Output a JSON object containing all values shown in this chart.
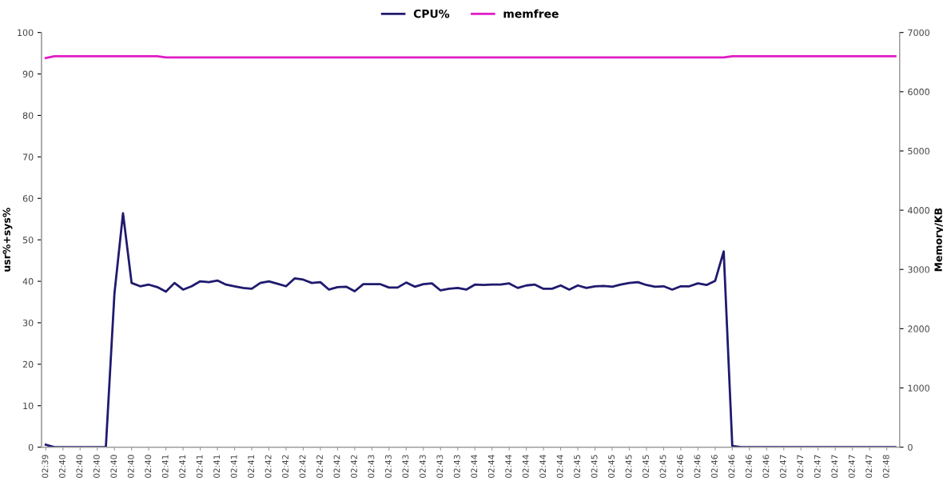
{
  "chart_data": {
    "type": "line",
    "categories": [
      "02:39",
      null,
      "02:40",
      null,
      "02:40",
      null,
      "02:40",
      null,
      "02:40",
      null,
      "02:40",
      null,
      "02:40",
      null,
      "02:41",
      null,
      "02:41",
      null,
      "02:41",
      null,
      "02:41",
      null,
      "02:41",
      null,
      "02:41",
      null,
      "02:42",
      null,
      "02:42",
      null,
      "02:42",
      null,
      "02:42",
      null,
      "02:42",
      null,
      "02:42",
      null,
      "02:43",
      null,
      "02:43",
      null,
      "02:43",
      null,
      "02:43",
      null,
      "02:43",
      null,
      "02:43",
      null,
      "02:44",
      null,
      "02:44",
      null,
      "02:44",
      null,
      "02:44",
      null,
      "02:44",
      null,
      "02:44",
      null,
      "02:45",
      null,
      "02:45",
      null,
      "02:45",
      null,
      "02:45",
      null,
      "02:45",
      null,
      "02:45",
      null,
      "02:46",
      null,
      "02:46",
      null,
      "02:46",
      null,
      "02:46",
      null,
      "02:46",
      null,
      "02:46",
      null,
      "02:47",
      null,
      "02:47",
      null,
      "02:47",
      null,
      "02:47",
      null,
      "02:47",
      null,
      "02:47",
      null,
      "02:48",
      null
    ],
    "series": [
      {
        "name": "CPU%",
        "color": "#1f1a6e",
        "values": [
          0.6,
          0,
          0,
          0,
          0,
          0,
          0,
          0,
          37,
          56.4,
          39.6,
          38.8,
          39.2,
          38.6,
          37.5,
          39.6,
          38.0,
          38.8,
          40.0,
          39.8,
          40.2,
          39.2,
          38.8,
          38.4,
          38.2,
          39.6,
          40.0,
          39.4,
          38.8,
          40.7,
          40.4,
          39.6,
          39.8,
          38.0,
          38.6,
          38.7,
          37.6,
          39.3,
          39.3,
          39.3,
          38.5,
          38.5,
          39.7,
          38.7,
          39.3,
          39.5,
          37.8,
          38.2,
          38.4,
          38.0,
          39.2,
          39.1,
          39.2,
          39.2,
          39.5,
          38.4,
          39.0,
          39.2,
          38.2,
          38.2,
          39.0,
          38.0,
          39.0,
          38.4,
          38.8,
          38.9,
          38.7,
          39.2,
          39.6,
          39.8,
          39.1,
          38.7,
          38.8,
          38.0,
          38.8,
          38.8,
          39.5,
          39.1,
          40.1,
          47.2,
          0.3,
          0,
          0,
          0,
          0,
          0,
          0,
          0,
          0,
          0,
          0,
          0,
          0,
          0,
          0,
          0,
          0,
          0,
          0,
          0
        ]
      },
      {
        "name": "memfree",
        "color": "#e01cc4",
        "axis": "y2",
        "values": [
          6570,
          6600,
          6600,
          6600,
          6600,
          6600,
          6600,
          6600,
          6600,
          6600,
          6600,
          6600,
          6600,
          6600,
          6580,
          6580,
          6580,
          6580,
          6580,
          6580,
          6580,
          6580,
          6580,
          6580,
          6580,
          6580,
          6580,
          6580,
          6580,
          6580,
          6580,
          6580,
          6580,
          6580,
          6580,
          6580,
          6580,
          6580,
          6580,
          6580,
          6580,
          6580,
          6580,
          6580,
          6580,
          6580,
          6580,
          6580,
          6580,
          6580,
          6580,
          6580,
          6580,
          6580,
          6580,
          6580,
          6580,
          6580,
          6580,
          6580,
          6580,
          6580,
          6580,
          6580,
          6580,
          6580,
          6580,
          6580,
          6580,
          6580,
          6580,
          6580,
          6580,
          6580,
          6580,
          6580,
          6580,
          6580,
          6580,
          6580,
          6600,
          6600,
          6600,
          6600,
          6600,
          6600,
          6600,
          6600,
          6600,
          6600,
          6600,
          6600,
          6600,
          6600,
          6600,
          6600,
          6600,
          6600,
          6600,
          6600
        ]
      }
    ],
    "ylabel": "usr%+sys%",
    "y2label": "Memory/KB",
    "ylim": [
      0,
      100
    ],
    "yticks": [
      0,
      10,
      20,
      30,
      40,
      50,
      60,
      70,
      80,
      90,
      100
    ],
    "y2lim": [
      0,
      7000
    ],
    "y2ticks": [
      0,
      1000,
      2000,
      3000,
      4000,
      5000,
      6000,
      7000
    ],
    "legend": "top",
    "grid": false
  }
}
